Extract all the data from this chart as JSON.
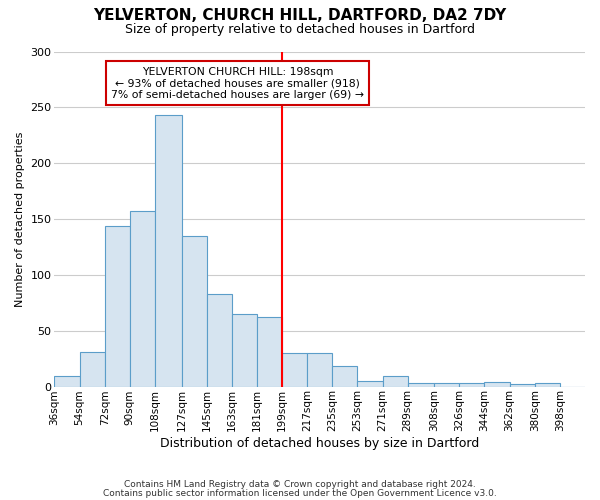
{
  "title": "YELVERTON, CHURCH HILL, DARTFORD, DA2 7DY",
  "subtitle": "Size of property relative to detached houses in Dartford",
  "xlabel": "Distribution of detached houses by size in Dartford",
  "ylabel": "Number of detached properties",
  "footer1": "Contains HM Land Registry data © Crown copyright and database right 2024.",
  "footer2": "Contains public sector information licensed under the Open Government Licence v3.0.",
  "bin_labels": [
    "36sqm",
    "54sqm",
    "72sqm",
    "90sqm",
    "108sqm",
    "127sqm",
    "145sqm",
    "163sqm",
    "181sqm",
    "199sqm",
    "217sqm",
    "235sqm",
    "253sqm",
    "271sqm",
    "289sqm",
    "308sqm",
    "326sqm",
    "344sqm",
    "362sqm",
    "380sqm",
    "398sqm"
  ],
  "bin_edges": [
    36,
    54,
    72,
    90,
    108,
    127,
    145,
    163,
    181,
    199,
    217,
    235,
    253,
    271,
    289,
    308,
    326,
    344,
    362,
    380,
    398,
    416
  ],
  "bar_heights": [
    9,
    31,
    144,
    157,
    243,
    135,
    83,
    65,
    62,
    30,
    30,
    18,
    5,
    9,
    3,
    3,
    3,
    4,
    2,
    3,
    0
  ],
  "bar_color": "#d6e4f0",
  "bar_edge_color": "#5b9dc9",
  "vline_x": 199,
  "vline_color": "red",
  "annotation_title": "YELVERTON CHURCH HILL: 198sqm",
  "annotation_line1": "← 93% of detached houses are smaller (918)",
  "annotation_line2": "7% of semi-detached houses are larger (69) →",
  "ylim": [
    0,
    300
  ],
  "yticks": [
    0,
    50,
    100,
    150,
    200,
    250,
    300
  ],
  "bg_color": "#ffffff",
  "plot_bg_color": "#ffffff",
  "grid_color": "#cccccc",
  "annotation_box_color": "#ffffff",
  "annotation_box_edge": "#cc0000",
  "title_fontsize": 11,
  "subtitle_fontsize": 9,
  "xlabel_fontsize": 9,
  "ylabel_fontsize": 8,
  "tick_fontsize": 7.5,
  "footer_fontsize": 6.5
}
